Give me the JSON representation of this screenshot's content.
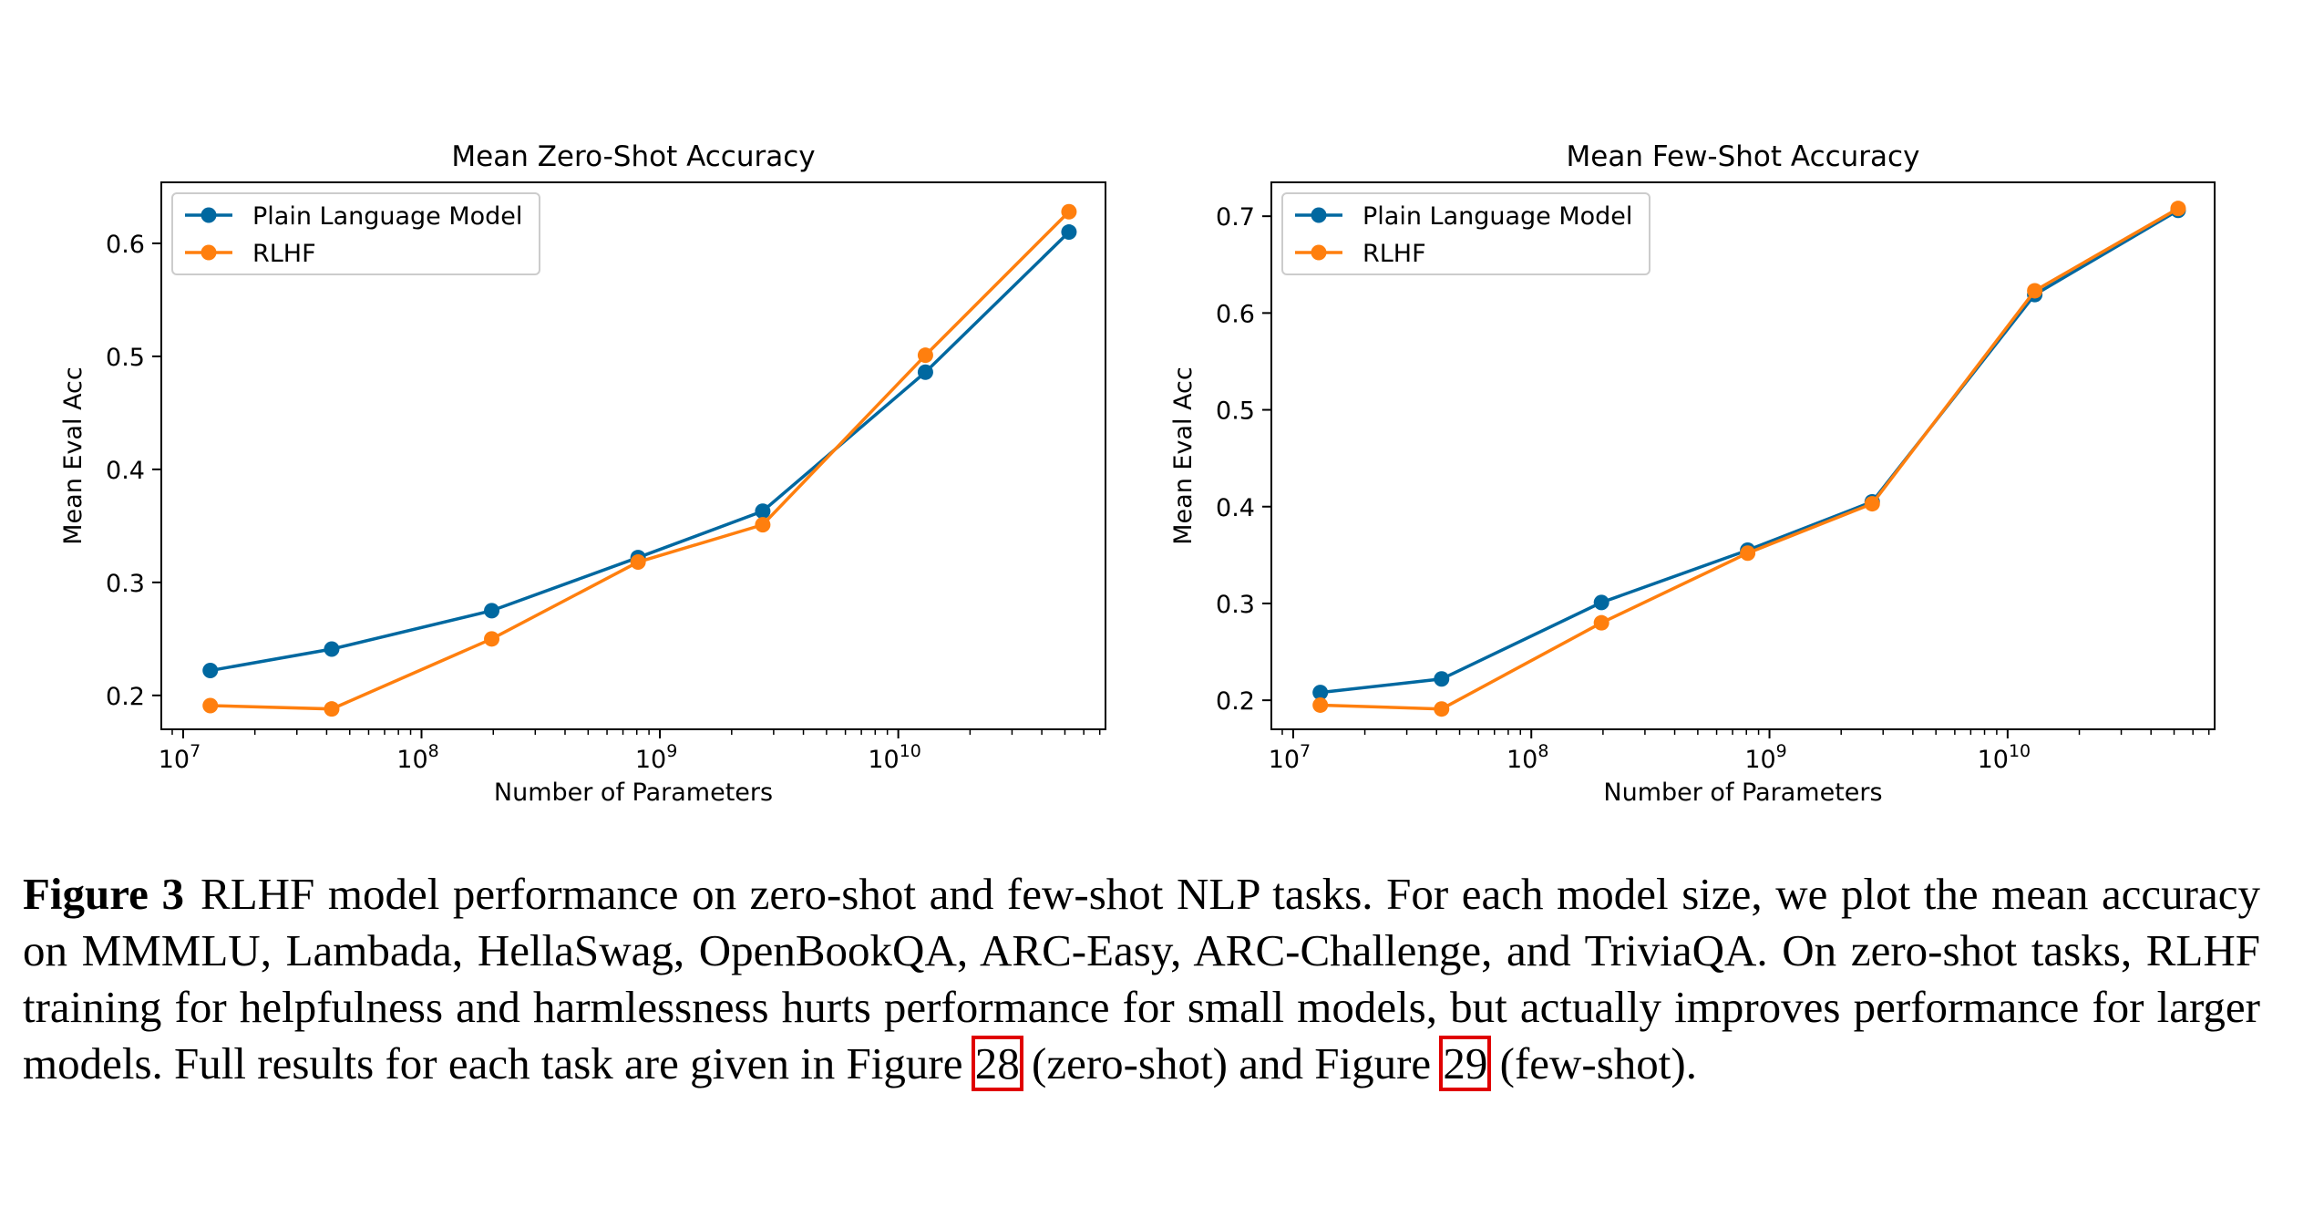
{
  "chart_data": [
    {
      "type": "line",
      "title": "Mean Zero-Shot Accuracy",
      "xlabel": "Number of Parameters",
      "ylabel": "Mean Eval Acc",
      "xscale": "log",
      "x": [
        13000000.0,
        42000000.0,
        197000000.0,
        810000000.0,
        2700000000.0,
        13000000000.0,
        52000000000.0
      ],
      "xticks": [
        {
          "value": 10000000.0,
          "base": "10",
          "exp": "7"
        },
        {
          "value": 100000000.0,
          "base": "10",
          "exp": "8"
        },
        {
          "value": 1000000000.0,
          "base": "10",
          "exp": "9"
        },
        {
          "value": 10000000000.0,
          "base": "10",
          "exp": "10"
        }
      ],
      "yticks": [
        0.2,
        0.3,
        0.4,
        0.5,
        0.6
      ],
      "ytick_labels": [
        "0.2",
        "0.3",
        "0.4",
        "0.5",
        "0.6"
      ],
      "xlim": [
        8100000.0,
        74000000000.0
      ],
      "ylim": [
        0.17,
        0.654
      ],
      "legend_position": "top-left",
      "grid": false,
      "series": [
        {
          "name": "Plain Language Model",
          "color": "#0068a0",
          "values": [
            0.222,
            0.241,
            0.275,
            0.322,
            0.363,
            0.486,
            0.61
          ]
        },
        {
          "name": "RLHF",
          "color": "#ff7f0e",
          "values": [
            0.191,
            0.188,
            0.25,
            0.318,
            0.351,
            0.501,
            0.628
          ]
        }
      ]
    },
    {
      "type": "line",
      "title": "Mean Few-Shot Accuracy",
      "xlabel": "Number of Parameters",
      "ylabel": "Mean Eval Acc",
      "xscale": "log",
      "x": [
        13000000.0,
        42000000.0,
        197000000.0,
        810000000.0,
        2700000000.0,
        13000000000.0,
        52000000000.0
      ],
      "xticks": [
        {
          "value": 10000000.0,
          "base": "10",
          "exp": "7"
        },
        {
          "value": 100000000.0,
          "base": "10",
          "exp": "8"
        },
        {
          "value": 1000000000.0,
          "base": "10",
          "exp": "9"
        },
        {
          "value": 10000000000.0,
          "base": "10",
          "exp": "10"
        }
      ],
      "yticks": [
        0.2,
        0.3,
        0.4,
        0.5,
        0.6,
        0.7
      ],
      "ytick_labels": [
        "0.2",
        "0.3",
        "0.4",
        "0.5",
        "0.6",
        "0.7"
      ],
      "xlim": [
        8100000.0,
        74000000000.0
      ],
      "ylim": [
        0.17,
        0.735
      ],
      "legend_position": "top-left",
      "grid": false,
      "series": [
        {
          "name": "Plain Language Model",
          "color": "#0068a0",
          "values": [
            0.208,
            0.222,
            0.301,
            0.355,
            0.405,
            0.619,
            0.706
          ]
        },
        {
          "name": "RLHF",
          "color": "#ff7f0e",
          "values": [
            0.195,
            0.191,
            0.28,
            0.352,
            0.403,
            0.623,
            0.708
          ]
        }
      ]
    }
  ],
  "caption": {
    "label": "Figure 3",
    "text_part1": "RLHF model performance on zero-shot and few-shot NLP tasks. For each model size, we plot the mean accuracy on MMMLU, Lambada, HellaSwag, OpenBookQA, ARC-Easy, ARC-Challenge, and TriviaQA. On zero-shot tasks, RLHF training for helpfulness and harmlessness hurts performance for small models, but actually improves performance for larger models. Full results for each task are given in Figure ",
    "ref1": "28",
    "text_part2": " (zero-shot) and Figure ",
    "ref2": "29",
    "text_part3": " (few-shot)."
  }
}
